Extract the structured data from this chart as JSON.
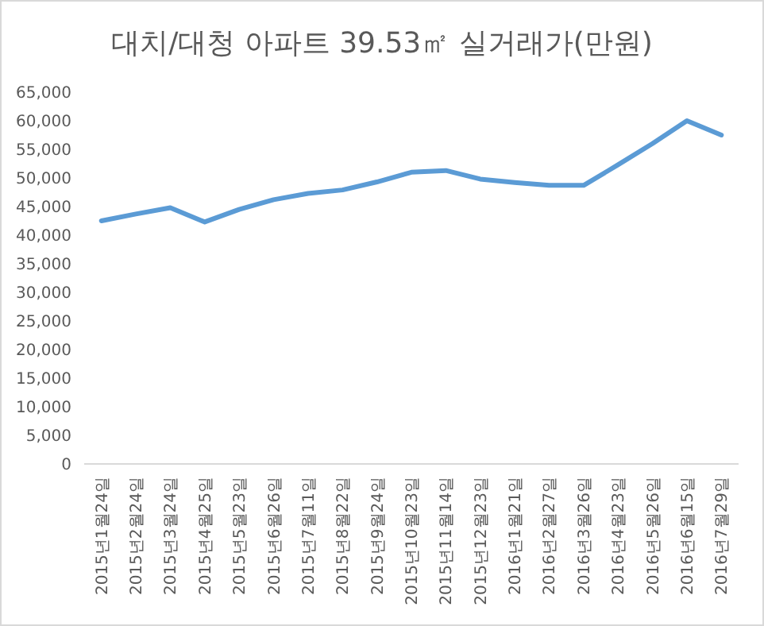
{
  "chart_data": {
    "type": "line",
    "title": "대치/대청 아파트 39.53㎡ 실거래가(만원)",
    "categories": [
      "2015년1월24일",
      "2015년2월24일",
      "2015년3월24일",
      "2015년4월25일",
      "2015년5월23일",
      "2015년6월26일",
      "2015년7월11일",
      "2015년8월22일",
      "2015년9월24일",
      "2015년10월23일",
      "2015년11월14일",
      "2015년12월23일",
      "2016년1월21일",
      "2016년2월27일",
      "2016년3월26일",
      "2016년4월23일",
      "2016년5월26일",
      "2016년6월15일",
      "2016년7월29일"
    ],
    "series": [
      {
        "color": "#5b9bd5",
        "values": [
          42500,
          43700,
          44800,
          42300,
          44500,
          46200,
          47300,
          47900,
          49300,
          51000,
          51300,
          49800,
          49200,
          48700,
          48700,
          52300,
          56000,
          60000,
          57500
        ]
      }
    ],
    "ylim": [
      0,
      65000
    ],
    "yticks": [
      {
        "value": 0,
        "label": "0"
      },
      {
        "value": 5000,
        "label": "5,000"
      },
      {
        "value": 10000,
        "label": "10,000"
      },
      {
        "value": 15000,
        "label": "15,000"
      },
      {
        "value": 20000,
        "label": "20,000"
      },
      {
        "value": 25000,
        "label": "25,000"
      },
      {
        "value": 30000,
        "label": "30,000"
      },
      {
        "value": 35000,
        "label": "35,000"
      },
      {
        "value": 40000,
        "label": "40,000"
      },
      {
        "value": 45000,
        "label": "45,000"
      },
      {
        "value": 50000,
        "label": "50,000"
      },
      {
        "value": 55000,
        "label": "55,000"
      },
      {
        "value": 60000,
        "label": "60,000"
      },
      {
        "value": 65000,
        "label": "65,000"
      }
    ],
    "marker": "none",
    "line_style": "solid"
  }
}
